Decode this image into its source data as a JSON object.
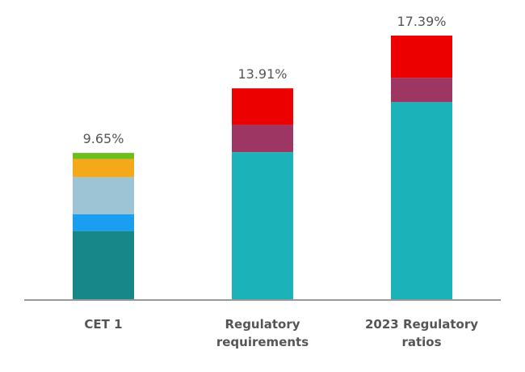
{
  "chart_data": {
    "type": "bar",
    "stacked": true,
    "categories": [
      {
        "lines": [
          "CET 1"
        ]
      },
      {
        "lines": [
          "Regulatory",
          "requirements"
        ]
      },
      {
        "lines": [
          "2023 Regulatory",
          "ratios"
        ]
      }
    ],
    "totals": [
      "9.65%",
      "13.91%",
      "17.39%"
    ],
    "stacks": [
      [
        {
          "value": 4.5,
          "color": "#18878a"
        },
        {
          "value": 1.1,
          "color": "#1a9ef0"
        },
        {
          "value": 2.45,
          "color": "#9dc4d4"
        },
        {
          "value": 1.2,
          "color": "#f4a91a"
        },
        {
          "value": 0.4,
          "color": "#6cbf1c"
        }
      ],
      [
        {
          "value": 9.7,
          "color": "#1cb2ba"
        },
        {
          "value": 1.8,
          "color": "#9e3664"
        },
        {
          "value": 2.41,
          "color": "#ec0000"
        }
      ],
      [
        {
          "value": 13.0,
          "color": "#1cb2ba"
        },
        {
          "value": 1.6,
          "color": "#9e3664"
        },
        {
          "value": 2.79,
          "color": "#ec0000"
        }
      ]
    ],
    "ylim": [
      0,
      17.39
    ],
    "axis_color": "#999999"
  }
}
